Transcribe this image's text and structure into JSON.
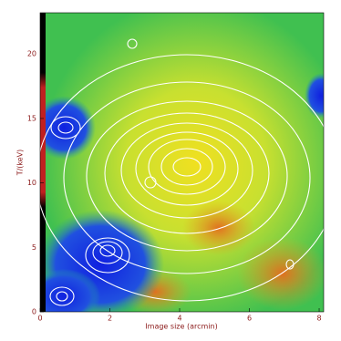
{
  "chart_data": {
    "type": "map",
    "xlabel": "Image size (arcmin)",
    "ylabel": "T/(keV)",
    "xlim": [
      0,
      8.13
    ],
    "xticks": [
      0,
      2,
      4,
      6,
      8
    ],
    "ylim": [
      0,
      23.2
    ],
    "yticks": [
      0,
      5,
      10,
      15,
      20
    ],
    "axis_color": "#8b1a1a"
  }
}
